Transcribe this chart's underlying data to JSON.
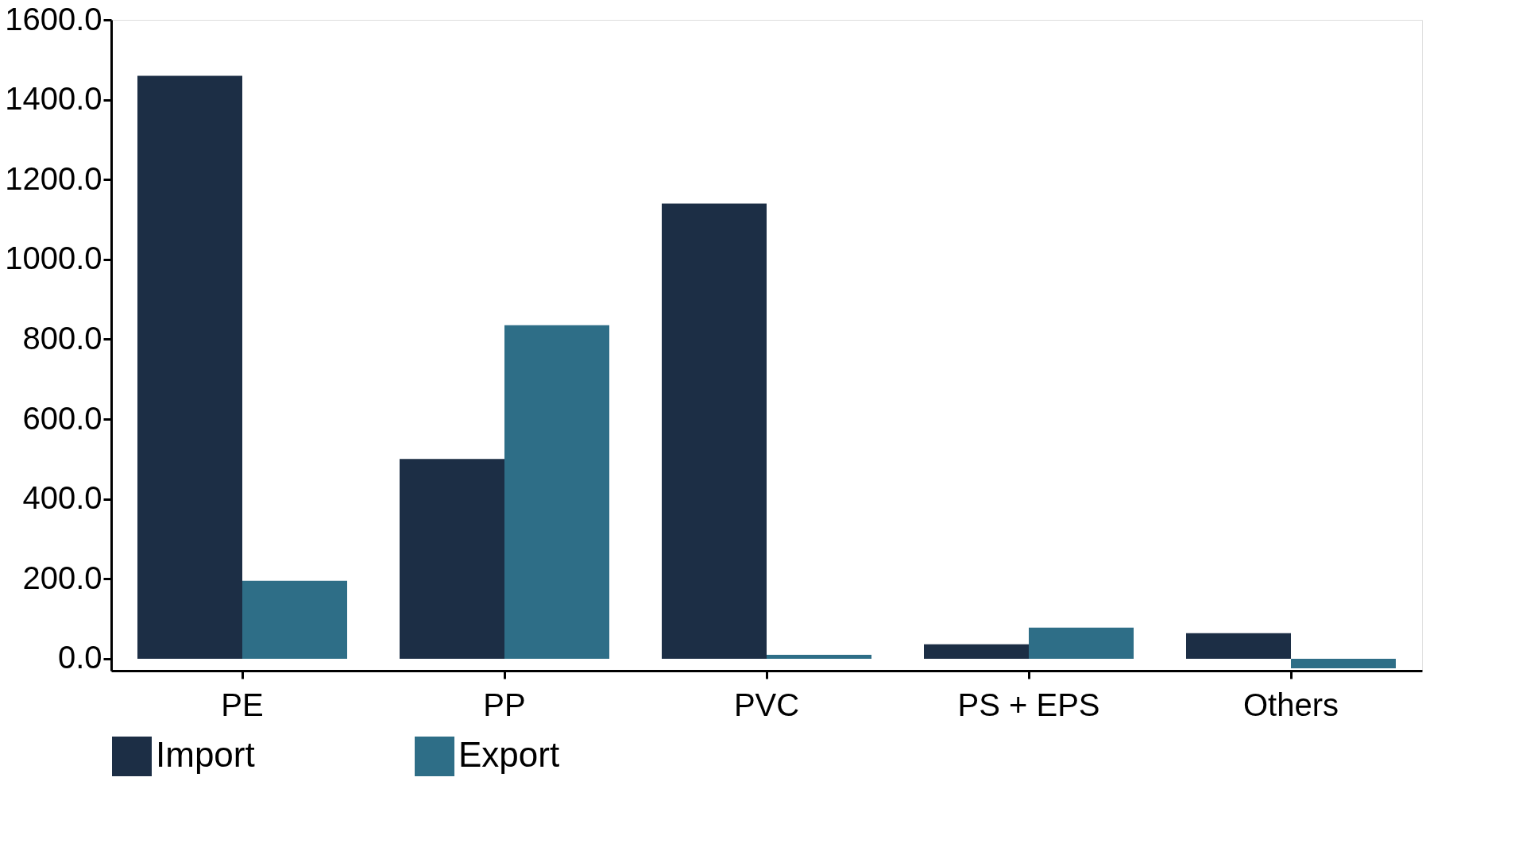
{
  "chart_data": {
    "type": "bar",
    "categories": [
      "PE",
      "PP",
      "PVC",
      "PS + EPS",
      "Others"
    ],
    "series": [
      {
        "name": "Import",
        "color": "#1c2e45",
        "values": [
          1460,
          500,
          1140,
          36,
          64
        ]
      },
      {
        "name": "Export",
        "color": "#2e6e87",
        "values": [
          195,
          835,
          10,
          78,
          -24
        ]
      }
    ],
    "ylim": [
      -30,
      1600
    ],
    "yticks": [
      {
        "value": 0,
        "label": "0.0"
      },
      {
        "value": 200,
        "label": "200.0"
      },
      {
        "value": 400,
        "label": "400.0"
      },
      {
        "value": 600,
        "label": "600.0"
      },
      {
        "value": 800,
        "label": "800.0"
      },
      {
        "value": 1000,
        "label": "1000.0"
      },
      {
        "value": 1200,
        "label": "1200.0"
      },
      {
        "value": 1400,
        "label": "1400.0"
      },
      {
        "value": 1600,
        "label": "1600.0"
      }
    ],
    "grid": false,
    "legend": "bottom"
  }
}
